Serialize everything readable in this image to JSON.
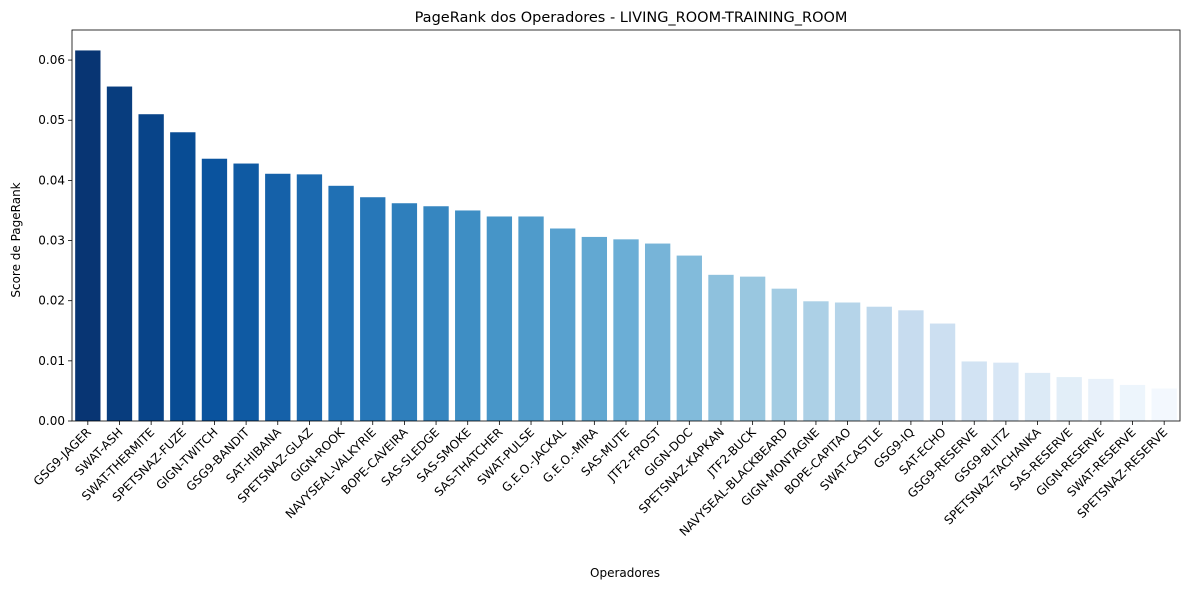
{
  "chart_data": {
    "type": "bar",
    "title": "PageRank dos Operadores - LIVING_ROOM-TRAINING_ROOM",
    "xlabel": "Operadores",
    "ylabel": "Score de PageRank",
    "ylim": [
      0,
      0.065
    ],
    "yticks": [
      "0.00",
      "0.01",
      "0.02",
      "0.03",
      "0.04",
      "0.05",
      "0.06"
    ],
    "grid": false,
    "legend": "none",
    "palette": "Blues (dark to light)",
    "categories": [
      "GSG9-JAGER",
      "SWAT-ASH",
      "SWAT-THERMITE",
      "SPETSNAZ-FUZE",
      "GIGN-TWITCH",
      "GSG9-BANDIT",
      "SAT-HIBANA",
      "SPETSNAZ-GLAZ",
      "GIGN-ROOK",
      "NAVYSEAL-VALKYRIE",
      "BOPE-CAVEIRA",
      "SAS-SLEDGE",
      "SAS-SMOKE",
      "SAS-THATCHER",
      "SWAT-PULSE",
      "G.E.O.-JACKAL",
      "G.E.O.-MIRA",
      "SAS-MUTE",
      "JTF2-FROST",
      "GIGN-DOC",
      "SPETSNAZ-KAPKAN",
      "JTF2-BUCK",
      "NAVYSEAL-BLACKBEARD",
      "GIGN-MONTAGNE",
      "BOPE-CAPITAO",
      "SWAT-CASTLE",
      "GSG9-IQ",
      "SAT-ECHO",
      "GSG9-RESERVE",
      "GSG9-BLITZ",
      "SPETSNAZ-TACHANKA",
      "SAS-RESERVE",
      "GIGN-RESERVE",
      "SWAT-RESERVE",
      "SPETSNAZ-RESERVE"
    ],
    "values": [
      0.0616,
      0.0556,
      0.051,
      0.048,
      0.0436,
      0.0428,
      0.0411,
      0.041,
      0.0391,
      0.0372,
      0.0362,
      0.0357,
      0.035,
      0.034,
      0.034,
      0.032,
      0.0306,
      0.0302,
      0.0295,
      0.0275,
      0.0243,
      0.024,
      0.022,
      0.0199,
      0.0197,
      0.019,
      0.0184,
      0.0162,
      0.0099,
      0.0097,
      0.008,
      0.0073,
      0.007,
      0.006,
      0.0054
    ]
  }
}
